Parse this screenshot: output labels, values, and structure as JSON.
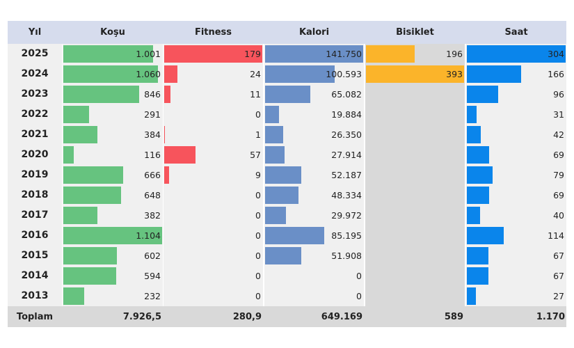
{
  "chart_data": {
    "type": "table",
    "columns": {
      "year": "Yıl",
      "kosu": "Koşu",
      "fitness": "Fitness",
      "kalori": "Kalori",
      "bisiklet": "Bisiklet",
      "saat": "Saat"
    },
    "colors": {
      "kosu": "#66c37f",
      "fitness": "#f7545c",
      "kalori": "#6a8fc7",
      "bisiklet": "#fbb42a",
      "saat": "#0a85eb"
    },
    "rows": [
      {
        "year": "2025",
        "kosu": 1001,
        "kosu_label": "1.001",
        "fitness": 179,
        "fitness_label": "179",
        "kalori": 141750,
        "kalori_label": "141.750",
        "bisiklet": 196,
        "bisiklet_label": "196",
        "saat": 304,
        "saat_label": "304"
      },
      {
        "year": "2024",
        "kosu": 1060,
        "kosu_label": "1.060",
        "fitness": 24,
        "fitness_label": "24",
        "kalori": 100593,
        "kalori_label": "100.593",
        "bisiklet": 393,
        "bisiklet_label": "393",
        "saat": 166,
        "saat_label": "166"
      },
      {
        "year": "2023",
        "kosu": 846,
        "kosu_label": "846",
        "fitness": 11,
        "fitness_label": "11",
        "kalori": 65082,
        "kalori_label": "65.082",
        "bisiklet": null,
        "bisiklet_label": "",
        "saat": 96,
        "saat_label": "96"
      },
      {
        "year": "2022",
        "kosu": 291,
        "kosu_label": "291",
        "fitness": 0,
        "fitness_label": "0",
        "kalori": 19884,
        "kalori_label": "19.884",
        "bisiklet": null,
        "bisiklet_label": "",
        "saat": 31,
        "saat_label": "31"
      },
      {
        "year": "2021",
        "kosu": 384,
        "kosu_label": "384",
        "fitness": 1,
        "fitness_label": "1",
        "kalori": 26350,
        "kalori_label": "26.350",
        "bisiklet": null,
        "bisiklet_label": "",
        "saat": 42,
        "saat_label": "42"
      },
      {
        "year": "2020",
        "kosu": 116,
        "kosu_label": "116",
        "fitness": 57,
        "fitness_label": "57",
        "kalori": 27914,
        "kalori_label": "27.914",
        "bisiklet": null,
        "bisiklet_label": "",
        "saat": 69,
        "saat_label": "69"
      },
      {
        "year": "2019",
        "kosu": 666,
        "kosu_label": "666",
        "fitness": 9,
        "fitness_label": "9",
        "kalori": 52187,
        "kalori_label": "52.187",
        "bisiklet": null,
        "bisiklet_label": "",
        "saat": 79,
        "saat_label": "79"
      },
      {
        "year": "2018",
        "kosu": 648,
        "kosu_label": "648",
        "fitness": 0,
        "fitness_label": "0",
        "kalori": 48334,
        "kalori_label": "48.334",
        "bisiklet": null,
        "bisiklet_label": "",
        "saat": 69,
        "saat_label": "69"
      },
      {
        "year": "2017",
        "kosu": 382,
        "kosu_label": "382",
        "fitness": 0,
        "fitness_label": "0",
        "kalori": 29972,
        "kalori_label": "29.972",
        "bisiklet": null,
        "bisiklet_label": "",
        "saat": 40,
        "saat_label": "40"
      },
      {
        "year": "2016",
        "kosu": 1104,
        "kosu_label": "1.104",
        "fitness": 0,
        "fitness_label": "0",
        "kalori": 85195,
        "kalori_label": "85.195",
        "bisiklet": null,
        "bisiklet_label": "",
        "saat": 114,
        "saat_label": "114"
      },
      {
        "year": "2015",
        "kosu": 602,
        "kosu_label": "602",
        "fitness": 0,
        "fitness_label": "0",
        "kalori": 51908,
        "kalori_label": "51.908",
        "bisiklet": null,
        "bisiklet_label": "",
        "saat": 67,
        "saat_label": "67"
      },
      {
        "year": "2014",
        "kosu": 594,
        "kosu_label": "594",
        "fitness": 0,
        "fitness_label": "0",
        "kalori": 0,
        "kalori_label": "0",
        "bisiklet": null,
        "bisiklet_label": "",
        "saat": 67,
        "saat_label": "67"
      },
      {
        "year": "2013",
        "kosu": 232,
        "kosu_label": "232",
        "fitness": 0,
        "fitness_label": "0",
        "kalori": 0,
        "kalori_label": "0",
        "bisiklet": null,
        "bisiklet_label": "",
        "saat": 27,
        "saat_label": "27"
      }
    ],
    "totals": {
      "label": "Toplam",
      "kosu": "7.926,5",
      "fitness": "280,9",
      "kalori": "649.169",
      "bisiklet": "589",
      "saat": "1.170"
    }
  }
}
